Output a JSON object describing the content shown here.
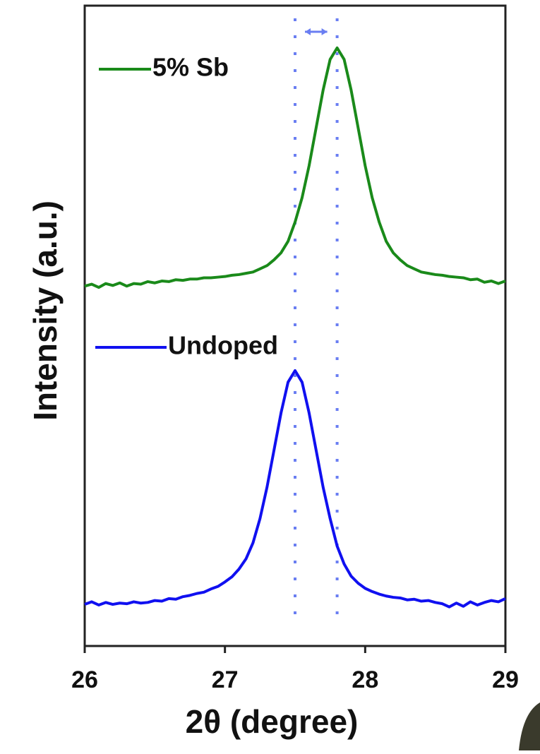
{
  "chart_data": {
    "type": "line",
    "x_label": "2θ (degree)",
    "y_label": "Intensity (a.u.)",
    "x": [
      26.0,
      26.05,
      26.1,
      26.15,
      26.2,
      26.25,
      26.3,
      26.35,
      26.4,
      26.45,
      26.5,
      26.55,
      26.6,
      26.65,
      26.7,
      26.75,
      26.8,
      26.85,
      26.9,
      26.95,
      27.0,
      27.05,
      27.1,
      27.15,
      27.2,
      27.25,
      27.3,
      27.35,
      27.4,
      27.45,
      27.5,
      27.55,
      27.6,
      27.65,
      27.7,
      27.75,
      27.8,
      27.85,
      27.9,
      27.95,
      28.0,
      28.05,
      28.1,
      28.15,
      28.2,
      28.25,
      28.3,
      28.35,
      28.4,
      28.45,
      28.5,
      28.55,
      28.6,
      28.65,
      28.7,
      28.75,
      28.8,
      28.85,
      28.9,
      28.95,
      29.0
    ],
    "series": [
      {
        "name": "5% Sb",
        "color": "#1a8a1a",
        "values": [
          56.2,
          56.5,
          56.0,
          56.6,
          56.3,
          56.7,
          56.2,
          56.6,
          56.5,
          56.9,
          56.7,
          57.0,
          56.9,
          57.2,
          57.1,
          57.3,
          57.3,
          57.5,
          57.5,
          57.6,
          57.7,
          57.9,
          58.0,
          58.2,
          58.4,
          58.9,
          59.4,
          60.3,
          61.4,
          63.2,
          66.2,
          70.0,
          75.0,
          80.9,
          86.8,
          91.6,
          93.4,
          91.6,
          86.8,
          80.9,
          75.0,
          70.0,
          66.2,
          63.2,
          61.4,
          60.3,
          59.4,
          58.9,
          58.4,
          58.2,
          58.0,
          57.9,
          57.7,
          57.6,
          57.5,
          57.2,
          57.3,
          56.8,
          57.0,
          56.6,
          57.0
        ]
      },
      {
        "name": "Undoped",
        "color": "#1010f0",
        "values": [
          6.5,
          6.9,
          6.4,
          6.8,
          6.5,
          6.7,
          6.6,
          6.9,
          6.7,
          6.8,
          7.1,
          7.0,
          7.4,
          7.3,
          7.7,
          7.9,
          8.2,
          8.4,
          8.9,
          9.3,
          10.0,
          10.8,
          12.0,
          13.6,
          16.1,
          19.9,
          24.8,
          30.6,
          36.4,
          41.2,
          43.0,
          41.2,
          36.4,
          30.6,
          24.8,
          19.9,
          15.6,
          12.8,
          10.9,
          9.8,
          9.0,
          8.5,
          8.1,
          7.8,
          7.6,
          7.5,
          7.2,
          7.3,
          7.0,
          7.1,
          6.8,
          6.6,
          6.1,
          6.7,
          6.2,
          6.9,
          6.4,
          6.8,
          7.1,
          6.9,
          7.4
        ]
      }
    ],
    "vlines": [
      27.5,
      27.8
    ],
    "vline_color": "#6a7ef2",
    "xlim": [
      26,
      29
    ],
    "xticks": [
      26,
      27,
      28,
      29
    ],
    "ylim": [
      0,
      100
    ]
  }
}
